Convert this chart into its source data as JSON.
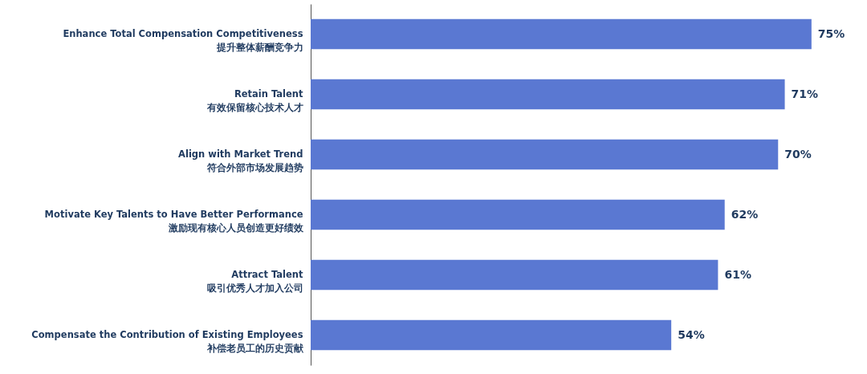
{
  "chart_data": {
    "type": "bar",
    "orientation": "horizontal",
    "categories": [
      "Enhance Total Compensation Competitiveness\n提升整体薪酬竞争力",
      "Retain Talent\n有效保留核心技术人才",
      "Align with Market Trend\n符合外部市场发展趋势",
      "Motivate Key Talents to Have Better Performance\n激励现有核心人员创造更好绩效",
      "Attract Talent\n吸引优秀人才加入公司",
      "Compensate the Contribution of Existing Employees\n补偿老员工的历史贡献"
    ],
    "series": [
      {
        "color": "#5a78d2",
        "values": [
          75,
          71,
          70,
          62,
          61,
          54
        ],
        "value_labels": [
          "75%",
          "71%",
          "70%",
          "62%",
          "61%",
          "54%"
        ]
      }
    ],
    "grid": false
  }
}
